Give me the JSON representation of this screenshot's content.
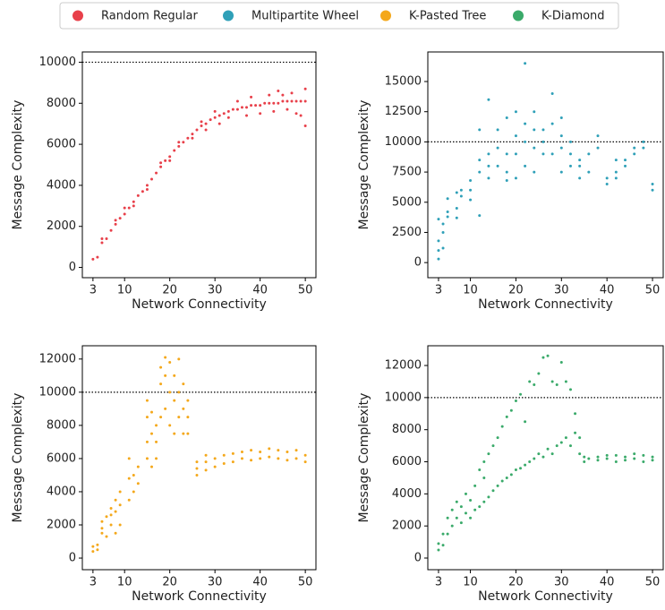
{
  "chart_data": [
    {
      "type": "scatter",
      "xlabel": "Network Connectivity",
      "ylabel": "Message Complexity",
      "xlim": [
        0.65,
        52.35
      ],
      "xticks": [
        3,
        10,
        20,
        30,
        40,
        50
      ],
      "ylim": [
        -500,
        10500
      ],
      "yticks": [
        0,
        2000,
        4000,
        6000,
        8000,
        10000
      ],
      "reference_line": 10000,
      "series": [
        {
          "name": "Random Regular",
          "color": "#e8404a",
          "x": [
            3,
            4,
            5,
            6,
            7,
            8,
            9,
            10,
            11,
            12,
            13,
            14,
            15,
            16,
            17,
            18,
            19,
            20,
            21,
            22,
            23,
            24,
            25,
            26,
            27,
            28,
            29,
            30,
            31,
            32,
            33,
            34,
            35,
            36,
            37,
            38,
            39,
            40,
            41,
            42,
            43,
            44,
            45,
            46,
            47,
            48,
            49,
            50,
            5,
            8,
            10,
            12,
            15,
            18,
            20,
            22,
            25,
            27,
            28,
            30,
            31,
            33,
            35,
            37,
            38,
            40,
            42,
            43,
            44,
            46,
            47,
            48,
            50,
            50,
            49,
            45
          ],
          "y": [
            400,
            500,
            1200,
            1400,
            1800,
            2100,
            2400,
            2600,
            2900,
            3200,
            3500,
            3700,
            4000,
            4300,
            4600,
            4900,
            5200,
            5400,
            5700,
            5900,
            6100,
            6300,
            6500,
            6700,
            6900,
            7000,
            7200,
            7300,
            7400,
            7500,
            7600,
            7700,
            7700,
            7800,
            7800,
            7900,
            7900,
            7900,
            8000,
            8000,
            8000,
            8000,
            8100,
            8100,
            8100,
            8100,
            8100,
            8100,
            1400,
            2300,
            2900,
            3000,
            3800,
            5100,
            5200,
            6100,
            6300,
            7100,
            6700,
            7600,
            7000,
            7300,
            8100,
            7400,
            8300,
            7500,
            8400,
            7600,
            8600,
            7700,
            8500,
            7500,
            8700,
            6900,
            7400,
            8400
          ]
        }
      ]
    },
    {
      "type": "scatter",
      "xlabel": "Network Connectivity",
      "ylabel": "Message Complexity",
      "xlim": [
        0.65,
        52.35
      ],
      "xticks": [
        3,
        10,
        20,
        30,
        40,
        50
      ],
      "ylim": [
        -1250,
        17450
      ],
      "yticks": [
        0,
        2500,
        5000,
        7500,
        10000,
        12500,
        15000
      ],
      "reference_line": 10000,
      "series": [
        {
          "name": "Multipartite Wheel",
          "color": "#2fa0b8",
          "x": [
            3,
            3,
            3,
            3,
            4,
            4,
            4,
            5,
            5,
            5,
            7,
            7,
            7,
            8,
            8,
            10,
            10,
            10,
            12,
            12,
            12,
            12,
            14,
            14,
            14,
            14,
            16,
            16,
            16,
            18,
            18,
            18,
            18,
            20,
            20,
            20,
            20,
            22,
            22,
            22,
            22,
            24,
            24,
            24,
            24,
            26,
            26,
            26,
            28,
            28,
            28,
            30,
            30,
            30,
            30,
            32,
            32,
            32,
            34,
            34,
            34,
            36,
            36,
            38,
            38,
            40,
            40,
            42,
            42,
            42,
            44,
            44,
            46,
            46,
            48,
            48,
            50,
            50
          ],
          "y": [
            300,
            1000,
            1800,
            3600,
            2500,
            3200,
            1200,
            3800,
            5300,
            4200,
            4500,
            5800,
            3700,
            5500,
            6000,
            6000,
            6800,
            5200,
            7500,
            8500,
            3900,
            11000,
            8000,
            9000,
            13500,
            7000,
            8000,
            9500,
            11000,
            7500,
            9000,
            12000,
            6800,
            9000,
            10500,
            7000,
            12500,
            10000,
            11500,
            16500,
            8000,
            9500,
            11000,
            12500,
            7500,
            10000,
            11000,
            9000,
            9000,
            11500,
            14000,
            9500,
            10500,
            7500,
            12000,
            9000,
            10000,
            8000,
            7000,
            8000,
            8500,
            7500,
            9000,
            9500,
            10500,
            6500,
            7000,
            7000,
            7500,
            8500,
            8000,
            8500,
            9000,
            9500,
            9500,
            10000,
            6000,
            6500
          ]
        }
      ]
    },
    {
      "type": "scatter",
      "xlabel": "Network Connectivity",
      "ylabel": "Message Complexity",
      "xlim": [
        0.65,
        52.35
      ],
      "xticks": [
        3,
        10,
        20,
        30,
        40,
        50
      ],
      "ylim": [
        -700,
        12800
      ],
      "yticks": [
        0,
        2000,
        4000,
        6000,
        8000,
        10000,
        12000
      ],
      "reference_line": 10000,
      "series": [
        {
          "name": "K-Pasted Tree",
          "color": "#f4a81b",
          "x": [
            3,
            3,
            4,
            4,
            5,
            5,
            5,
            6,
            6,
            7,
            7,
            7,
            8,
            8,
            8,
            9,
            9,
            9,
            11,
            11,
            11,
            12,
            12,
            13,
            13,
            15,
            15,
            15,
            15,
            16,
            16,
            16,
            17,
            17,
            17,
            18,
            18,
            18,
            19,
            19,
            19,
            20,
            20,
            20,
            21,
            21,
            21,
            22,
            22,
            22,
            23,
            23,
            23,
            24,
            24,
            24,
            26,
            26,
            26,
            28,
            28,
            28,
            30,
            30,
            32,
            32,
            34,
            34,
            36,
            36,
            38,
            38,
            40,
            40,
            42,
            42,
            44,
            44,
            46,
            46,
            48,
            48,
            50,
            50
          ],
          "y": [
            400,
            700,
            500,
            800,
            1500,
            2200,
            1800,
            1300,
            2500,
            2000,
            3000,
            2600,
            1500,
            2800,
            3500,
            2000,
            3200,
            4000,
            3500,
            4800,
            6000,
            4000,
            5000,
            4500,
            5500,
            6000,
            7000,
            9500,
            8500,
            5500,
            7500,
            8800,
            6000,
            7000,
            8000,
            8500,
            10500,
            11500,
            9000,
            11000,
            12100,
            8000,
            10000,
            11800,
            7500,
            9500,
            11000,
            8500,
            10000,
            12000,
            7500,
            9000,
            10500,
            7500,
            8500,
            9500,
            5000,
            5400,
            5800,
            5300,
            5800,
            6200,
            5500,
            6000,
            5700,
            6200,
            5800,
            6300,
            6000,
            6400,
            5900,
            6500,
            6000,
            6400,
            6100,
            6600,
            6000,
            6500,
            5900,
            6400,
            6000,
            6500,
            5800,
            6200
          ]
        }
      ]
    },
    {
      "type": "scatter",
      "xlabel": "Network Connectivity",
      "ylabel": "Message Complexity",
      "xlim": [
        0.65,
        52.35
      ],
      "xticks": [
        3,
        10,
        20,
        30,
        40,
        50
      ],
      "ylim": [
        -725,
        13230
      ],
      "yticks": [
        0,
        2000,
        4000,
        6000,
        8000,
        10000,
        12000
      ],
      "reference_line": 10000,
      "series": [
        {
          "name": "K-Diamond",
          "color": "#3aaa6a",
          "x": [
            3,
            3,
            4,
            4,
            5,
            5,
            6,
            6,
            7,
            7,
            8,
            8,
            9,
            9,
            10,
            10,
            11,
            11,
            12,
            12,
            13,
            13,
            13,
            14,
            14,
            15,
            15,
            16,
            16,
            17,
            17,
            18,
            18,
            19,
            19,
            20,
            20,
            21,
            21,
            22,
            22,
            23,
            23,
            24,
            24,
            25,
            25,
            26,
            26,
            27,
            27,
            28,
            28,
            29,
            29,
            30,
            30,
            31,
            31,
            32,
            32,
            33,
            33,
            34,
            34,
            35,
            35,
            36,
            38,
            38,
            40,
            40,
            42,
            42,
            44,
            44,
            46,
            46,
            48,
            48,
            50,
            50
          ],
          "y": [
            500,
            900,
            800,
            1500,
            1500,
            2500,
            2000,
            3000,
            2500,
            3500,
            2200,
            3200,
            2800,
            4000,
            2500,
            3600,
            3000,
            4500,
            3200,
            5500,
            3500,
            5000,
            6000,
            3800,
            6500,
            4200,
            7000,
            4500,
            7500,
            4800,
            8200,
            5000,
            8800,
            5200,
            9200,
            5500,
            9800,
            5600,
            10200,
            5800,
            8500,
            6000,
            11000,
            6200,
            10800,
            6500,
            11500,
            6300,
            12500,
            6800,
            12600,
            6500,
            11000,
            7000,
            10800,
            7200,
            12200,
            7500,
            11000,
            7000,
            10500,
            7800,
            9000,
            6500,
            7500,
            6000,
            6300,
            6200,
            6300,
            6100,
            6200,
            6400,
            6000,
            6400,
            6100,
            6300,
            6200,
            6500,
            6000,
            6400,
            6100,
            6300
          ]
        }
      ]
    }
  ]
}
